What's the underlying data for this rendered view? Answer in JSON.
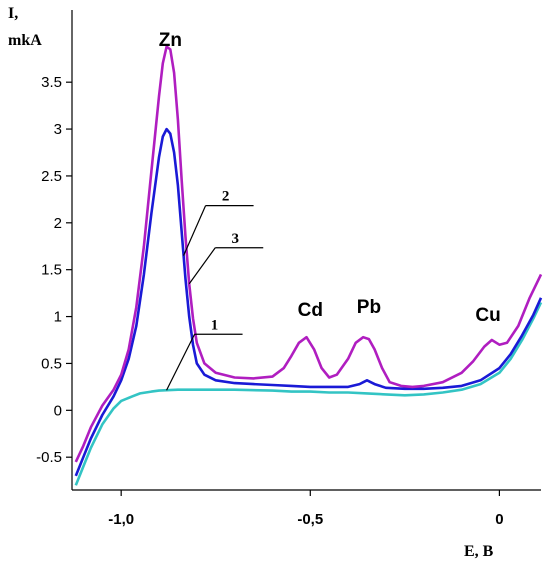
{
  "chart_data": {
    "type": "line",
    "ylabel_line1": "I,",
    "ylabel_line2": "mkA",
    "xlabel": "E, B",
    "xlim": [
      -1.13,
      0.11
    ],
    "ylim": [
      -0.85,
      3.95
    ],
    "grid": false,
    "legend": "none",
    "y_ticks": [
      {
        "v": -0.5,
        "label": "-0.5"
      },
      {
        "v": 0,
        "label": "0"
      },
      {
        "v": 0.5,
        "label": "0.5"
      },
      {
        "v": 1,
        "label": "1"
      },
      {
        "v": 1.5,
        "label": "1.5"
      },
      {
        "v": 2,
        "label": "2"
      },
      {
        "v": 2.5,
        "label": "2.5"
      },
      {
        "v": 3,
        "label": "3"
      },
      {
        "v": 3.5,
        "label": "3.5"
      }
    ],
    "x_ticks": [
      {
        "v": -1.0,
        "label": "-1,0"
      },
      {
        "v": -0.5,
        "label": "-0,5"
      },
      {
        "v": 0,
        "label": "0"
      }
    ],
    "peak_labels": [
      {
        "text": "Zn",
        "x": -0.87
      },
      {
        "text": "Cd",
        "x": -0.5
      },
      {
        "text": "Pb",
        "x": -0.345
      },
      {
        "text": "Cu",
        "x": -0.03
      }
    ],
    "series": [
      {
        "name": "1",
        "color": "#33c4c4",
        "x": [
          -1.12,
          -1.1,
          -1.08,
          -1.05,
          -1.02,
          -1.0,
          -0.97,
          -0.95,
          -0.92,
          -0.9,
          -0.85,
          -0.8,
          -0.7,
          -0.6,
          -0.55,
          -0.5,
          -0.45,
          -0.4,
          -0.35,
          -0.3,
          -0.25,
          -0.2,
          -0.15,
          -0.1,
          -0.05,
          0.0,
          0.03,
          0.06,
          0.09,
          0.11
        ],
        "values": [
          -0.8,
          -0.6,
          -0.4,
          -0.15,
          0.02,
          0.1,
          0.15,
          0.18,
          0.2,
          0.21,
          0.22,
          0.22,
          0.22,
          0.21,
          0.2,
          0.2,
          0.19,
          0.19,
          0.18,
          0.17,
          0.16,
          0.17,
          0.19,
          0.22,
          0.28,
          0.4,
          0.55,
          0.75,
          0.98,
          1.15
        ]
      },
      {
        "name": "2",
        "color": "#1a1ad6",
        "x": [
          -1.12,
          -1.1,
          -1.08,
          -1.05,
          -1.02,
          -1.0,
          -0.98,
          -0.96,
          -0.94,
          -0.92,
          -0.9,
          -0.89,
          -0.88,
          -0.87,
          -0.86,
          -0.85,
          -0.84,
          -0.83,
          -0.82,
          -0.81,
          -0.8,
          -0.78,
          -0.75,
          -0.7,
          -0.65,
          -0.6,
          -0.55,
          -0.5,
          -0.45,
          -0.4,
          -0.37,
          -0.35,
          -0.33,
          -0.3,
          -0.25,
          -0.2,
          -0.15,
          -0.1,
          -0.05,
          0.0,
          0.03,
          0.06,
          0.09,
          0.11
        ],
        "values": [
          -0.7,
          -0.5,
          -0.3,
          -0.05,
          0.15,
          0.32,
          0.55,
          0.9,
          1.45,
          2.1,
          2.7,
          2.92,
          3.0,
          2.95,
          2.75,
          2.4,
          1.9,
          1.4,
          1.0,
          0.7,
          0.5,
          0.38,
          0.32,
          0.29,
          0.28,
          0.27,
          0.26,
          0.25,
          0.25,
          0.25,
          0.28,
          0.32,
          0.28,
          0.24,
          0.23,
          0.23,
          0.24,
          0.26,
          0.32,
          0.45,
          0.6,
          0.8,
          1.02,
          1.2
        ]
      },
      {
        "name": "3",
        "color": "#b01ec0",
        "x": [
          -1.12,
          -1.1,
          -1.08,
          -1.05,
          -1.02,
          -1.0,
          -0.98,
          -0.96,
          -0.94,
          -0.92,
          -0.9,
          -0.89,
          -0.88,
          -0.87,
          -0.86,
          -0.85,
          -0.84,
          -0.83,
          -0.82,
          -0.81,
          -0.8,
          -0.78,
          -0.75,
          -0.7,
          -0.65,
          -0.6,
          -0.57,
          -0.55,
          -0.53,
          -0.51,
          -0.49,
          -0.47,
          -0.45,
          -0.43,
          -0.4,
          -0.38,
          -0.36,
          -0.345,
          -0.33,
          -0.31,
          -0.29,
          -0.26,
          -0.23,
          -0.2,
          -0.15,
          -0.1,
          -0.07,
          -0.04,
          -0.02,
          0.0,
          0.02,
          0.05,
          0.08,
          0.11
        ],
        "values": [
          -0.55,
          -0.38,
          -0.18,
          0.05,
          0.22,
          0.38,
          0.65,
          1.1,
          1.75,
          2.55,
          3.35,
          3.7,
          3.88,
          3.85,
          3.6,
          3.1,
          2.45,
          1.85,
          1.35,
          0.98,
          0.72,
          0.5,
          0.4,
          0.35,
          0.34,
          0.36,
          0.45,
          0.58,
          0.72,
          0.78,
          0.65,
          0.45,
          0.35,
          0.38,
          0.55,
          0.72,
          0.78,
          0.76,
          0.65,
          0.45,
          0.3,
          0.26,
          0.25,
          0.26,
          0.3,
          0.4,
          0.52,
          0.68,
          0.75,
          0.7,
          0.72,
          0.9,
          1.2,
          1.45
        ]
      }
    ],
    "curve_labels": [
      {
        "text": "1",
        "series": "1",
        "at_x": -0.88
      },
      {
        "text": "2",
        "series": "2",
        "at_x": -0.835
      },
      {
        "text": "3",
        "series": "3",
        "at_x": -0.82
      }
    ]
  }
}
